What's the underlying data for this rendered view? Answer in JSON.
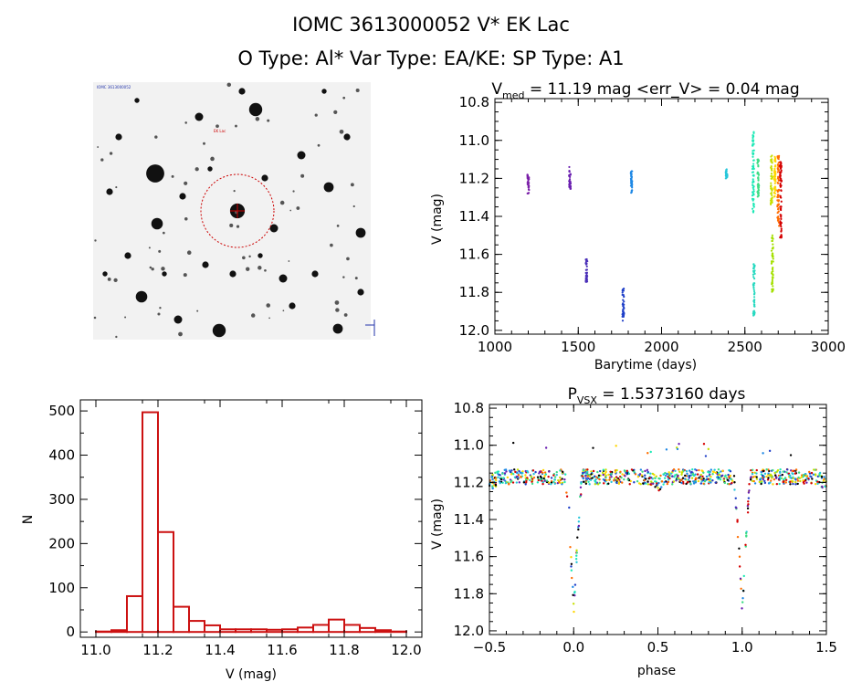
{
  "header": {
    "title": "IOMC 3613000052    V* EK Lac",
    "subtitle": "O Type: Al*   Var Type: EA/KE:   SP Type: A1"
  },
  "finder": {
    "corner_label": "IOMC 3613000052",
    "target_label": "EK Lac"
  },
  "chart_data": [
    {
      "type": "scatter",
      "name": "lightcurve",
      "title_main": "V",
      "title_sub": "med",
      "title_rest": " = 11.19 mag <err_V> = 0.04 mag",
      "xlabel": "Barytime (days)",
      "ylabel": "V (mag)",
      "xlim": [
        1000,
        3000
      ],
      "ylim": [
        12.02,
        10.78
      ],
      "y_inverted": true,
      "xticks": [
        1000,
        1500,
        2000,
        2500,
        3000
      ],
      "xtick_labels": [
        "1000",
        "1500",
        "2000",
        "2500",
        "3000"
      ],
      "yticks": [
        10.8,
        11.0,
        11.2,
        11.4,
        11.6,
        11.8,
        12.0
      ],
      "ytick_labels": [
        "10.8",
        "11.0",
        "11.2",
        "11.4",
        "11.6",
        "11.8",
        "12.0"
      ],
      "groups": [
        {
          "x": 1200,
          "y_range": [
            11.18,
            11.28
          ],
          "color": "#7a1fa8"
        },
        {
          "x": 1450,
          "y_range": [
            11.14,
            11.26
          ],
          "color": "#6a1fb0"
        },
        {
          "x": 1550,
          "y_range": [
            11.62,
            11.75
          ],
          "color": "#4a2fb8"
        },
        {
          "x": 1770,
          "y_range": [
            11.78,
            11.95
          ],
          "color": "#2040c8"
        },
        {
          "x": 1820,
          "y_range": [
            11.15,
            11.28
          ],
          "color": "#1e88e5"
        },
        {
          "x": 2390,
          "y_range": [
            11.15,
            11.2
          ],
          "color": "#26c6da"
        },
        {
          "x": 2550,
          "y_range": [
            10.95,
            11.38
          ],
          "color": "#1de9b6"
        },
        {
          "x": 2555,
          "y_range": [
            11.65,
            11.93
          ],
          "color": "#26d9c0"
        },
        {
          "x": 2580,
          "y_range": [
            11.1,
            11.3
          ],
          "color": "#3ddc84"
        },
        {
          "x": 2660,
          "y_range": [
            11.08,
            11.35
          ],
          "color": "#c6e000"
        },
        {
          "x": 2665,
          "y_range": [
            11.5,
            11.8
          ],
          "color": "#a4e000"
        },
        {
          "x": 2680,
          "y_range": [
            11.08,
            11.3
          ],
          "color": "#ffd600"
        },
        {
          "x": 2700,
          "y_range": [
            11.08,
            11.45
          ],
          "color": "#ff6d00"
        },
        {
          "x": 2715,
          "y_range": [
            11.1,
            11.52
          ],
          "color": "#d50000"
        }
      ]
    },
    {
      "type": "bar",
      "name": "histogram",
      "xlabel": "V (mag)",
      "ylabel": "N",
      "xlim": [
        10.95,
        12.05
      ],
      "ylim": [
        -12,
        525
      ],
      "bin_width": 0.05,
      "bin_starts": [
        10.95,
        11.0,
        11.05,
        11.1,
        11.15,
        11.2,
        11.25,
        11.3,
        11.35,
        11.4,
        11.45,
        11.5,
        11.55,
        11.6,
        11.65,
        11.7,
        11.75,
        11.8,
        11.85,
        11.9,
        11.95
      ],
      "values": [
        0,
        1,
        4,
        81,
        497,
        226,
        57,
        25,
        15,
        6,
        6,
        6,
        5,
        6,
        10,
        16,
        28,
        16,
        9,
        4,
        1
      ],
      "xticks": [
        11.0,
        11.2,
        11.4,
        11.6,
        11.8,
        12.0
      ],
      "xtick_labels": [
        "11.0",
        "11.2",
        "11.4",
        "11.6",
        "11.8",
        "12.0"
      ],
      "yticks": [
        0,
        100,
        200,
        300,
        400,
        500
      ],
      "ytick_labels": [
        "0",
        "100",
        "200",
        "300",
        "400",
        "500"
      ],
      "color": "#cc1111"
    },
    {
      "type": "scatter",
      "name": "phased",
      "title_main": "P",
      "title_sub": "VSX",
      "title_rest": " = 1.5373160 days",
      "xlabel": "phase",
      "ylabel": "V (mag)",
      "xlim": [
        -0.5,
        1.5
      ],
      "ylim": [
        12.02,
        10.78
      ],
      "y_inverted": true,
      "xticks": [
        -0.5,
        0.0,
        0.5,
        1.0,
        1.5
      ],
      "xtick_labels": [
        "−0.5",
        "0.0",
        "0.5",
        "1.0",
        "1.5"
      ],
      "yticks": [
        10.8,
        11.0,
        11.2,
        11.4,
        11.6,
        11.8,
        12.0
      ],
      "ytick_labels": [
        "10.8",
        "11.0",
        "11.2",
        "11.4",
        "11.6",
        "11.8",
        "12.0"
      ],
      "period_days": 1.537316,
      "eclipse_phase": [
        0.0,
        1.0
      ],
      "eclipse_depth_mag": 11.88,
      "out_of_eclipse_mag": 11.17,
      "secondary_phase": [
        0.5,
        -0.5,
        1.5
      ],
      "secondary_depth_mag": 11.21,
      "colors": [
        "#d50000",
        "#ff6d00",
        "#ffd600",
        "#c6e000",
        "#3ddc84",
        "#1de9b6",
        "#26c6da",
        "#1e88e5",
        "#2040c8",
        "#6a1fb0",
        "#000000"
      ]
    }
  ]
}
